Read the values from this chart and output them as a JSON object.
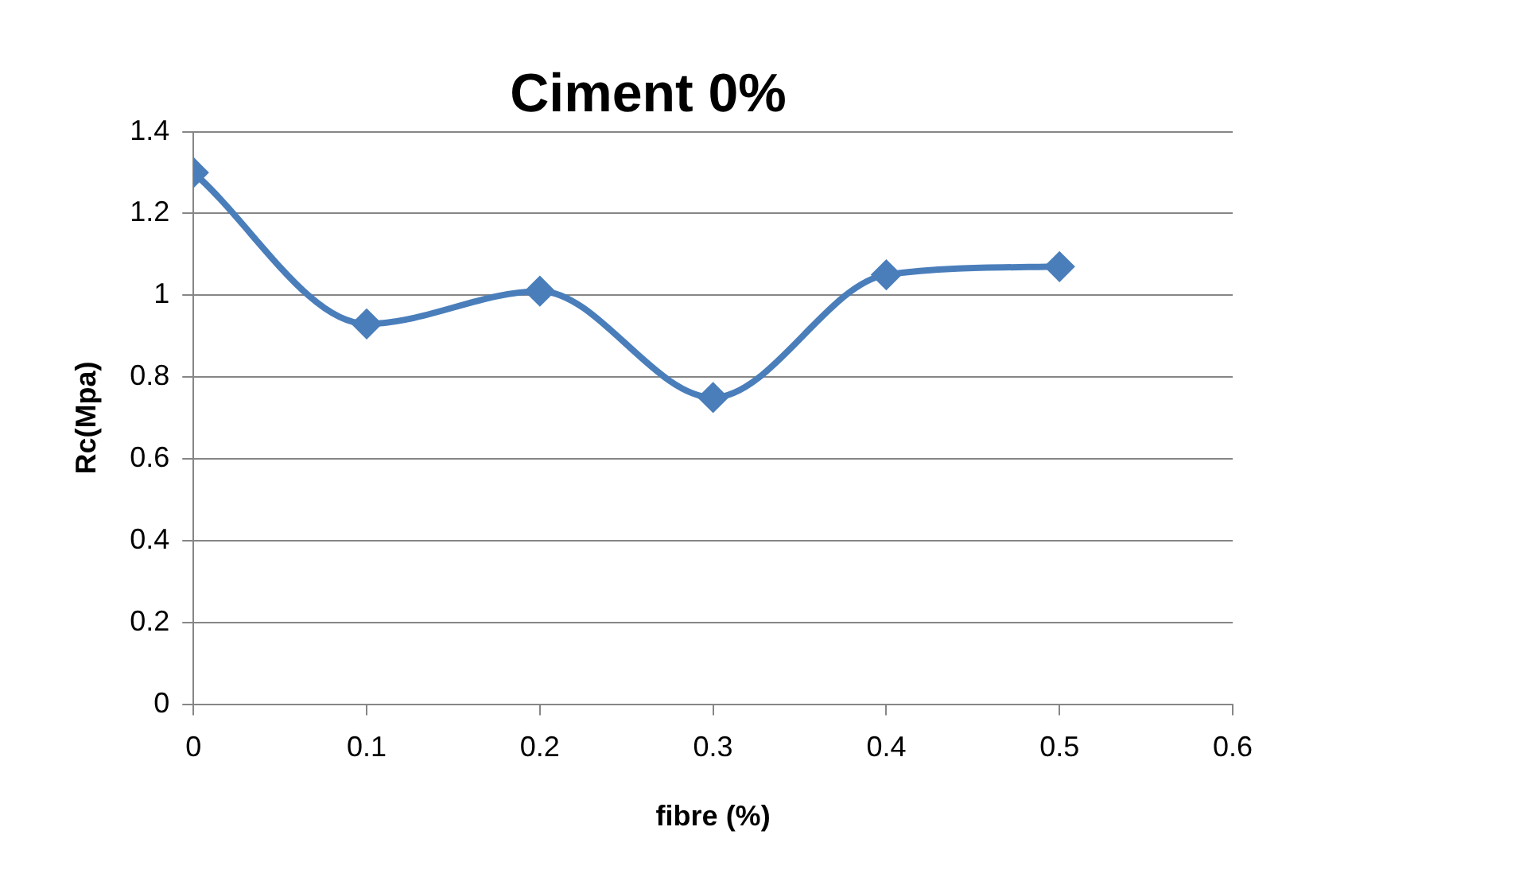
{
  "chart_data": {
    "type": "line",
    "title": "Ciment 0%",
    "xlabel": "fibre (%)",
    "ylabel": "Rc(Mpa)",
    "x": [
      0,
      0.1,
      0.2,
      0.3,
      0.4,
      0.5
    ],
    "series": [
      {
        "color": "#4a7ebb",
        "values": [
          1.3,
          0.93,
          1.01,
          0.75,
          1.05,
          1.07
        ]
      }
    ],
    "xlim": [
      0,
      0.6
    ],
    "xticks": [
      0,
      0.1,
      0.2,
      0.3,
      0.4,
      0.5,
      0.6
    ],
    "ylim": [
      0,
      1.4
    ],
    "yticks": [
      0,
      0.2,
      0.4,
      0.6,
      0.8,
      1,
      1.2,
      1.4
    ],
    "grid": "y",
    "legend": false,
    "marker": "diamond",
    "line_style": "solid"
  }
}
